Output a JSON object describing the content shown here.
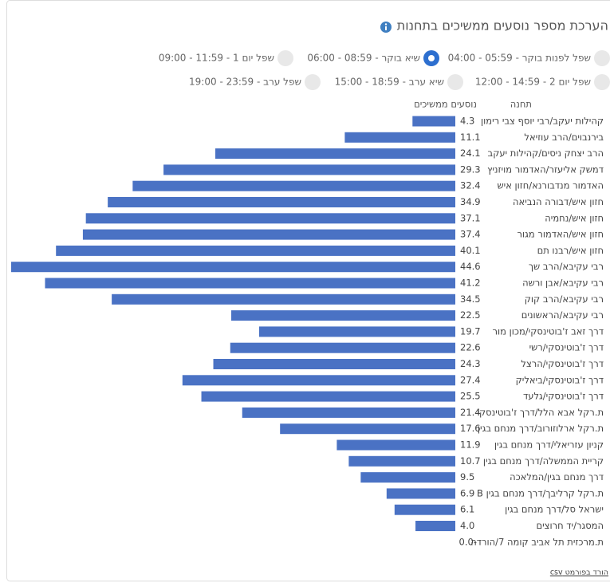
{
  "title": "הערכת מספר נוסעים ממשיכים בתחנות",
  "options": [
    {
      "label": "שפל לפנות בוקר - 05:59 - 04:00",
      "selected": false
    },
    {
      "label": "שיא בוקר - 08:59 - 06:00",
      "selected": true
    },
    {
      "label": "שפל יום 1 - 11:59 - 09:00",
      "selected": false
    },
    {
      "label": "שפל יום 2 - 14:59 - 12:00",
      "selected": false
    },
    {
      "label": "שיא ערב - 18:59 - 15:00",
      "selected": false
    },
    {
      "label": "שפל ערב - 23:59 - 19:00",
      "selected": false
    }
  ],
  "chart_data": {
    "type": "bar",
    "orientation": "horizontal",
    "category_header": "תחנה",
    "value_header": "נוסעים ממשיכים",
    "categories": [
      "קהילות יעקב/רבי יוסף צבי רימון",
      "בירנבוים/הרב עוזיאל",
      "הרב יצחק ניסים/קהילות יעקב",
      "דמשק אליעזר/האדמור מויזניץ",
      "האדמור מנדבורנא/חזון איש",
      "חזון איש/דבורה הנביאה",
      "חזון איש/נחמיה",
      "חזון איש/האדמור מגור",
      "חזון איש/רבנו תם",
      "רבי עקיבא/הרב שך",
      "רבי עקיבא/אבן ורשה",
      "רבי עקיבא/הרב קוק",
      "רבי עקיבא/הראשונים",
      "דרך זאב ז'בוטינסקי/מכון מור",
      "דרך ז'בוטינסקי/רשי",
      "דרך ז'בוטינסקי/הרצל",
      "דרך ז'בוטינסקי/ביאליק",
      "דרך ז'בוטינסקי/גלעד",
      "ת.רקל אבא הלל/דרך ז'בוטינסקי",
      "ת.רקל ארלוזורוב/דרך מנחם בגין",
      "קניון עזריאלי/דרך מנחם בגין",
      "קריית הממשלה/דרך מנחם בגין",
      "דרך מנחם בגין/המלאכה",
      "ת.רקל קרליבך/דרך מנחם בגין B",
      "ישראל סל/דרך מנחם בגין",
      "המסגר/יד חרוצים",
      "ת.מרכזית תל אביב קומה 7/הורדה"
    ],
    "values": [
      4.3,
      11.1,
      24.1,
      29.3,
      32.4,
      34.9,
      37.1,
      37.4,
      40.1,
      44.6,
      41.2,
      34.5,
      22.5,
      19.7,
      22.6,
      24.3,
      27.4,
      25.5,
      21.4,
      17.6,
      11.9,
      10.7,
      9.5,
      6.9,
      6.1,
      4.0,
      0
    ],
    "value_labels": [
      "4.3",
      "11.1",
      "24.1",
      "29.3",
      "32.4",
      "34.9",
      "37.1",
      "37.4",
      "40.1",
      "44.6",
      "41.2",
      "34.5",
      "22.5",
      "19.7",
      "22.6",
      "24.3",
      "27.4",
      "25.5",
      "21.4",
      "17.6",
      "11.9",
      "10.7",
      "9.5",
      "6.9",
      "6.1",
      "4.0",
      "-0.0"
    ],
    "color": "#4a72c4"
  },
  "download_link": "הורד בפורמט csv"
}
